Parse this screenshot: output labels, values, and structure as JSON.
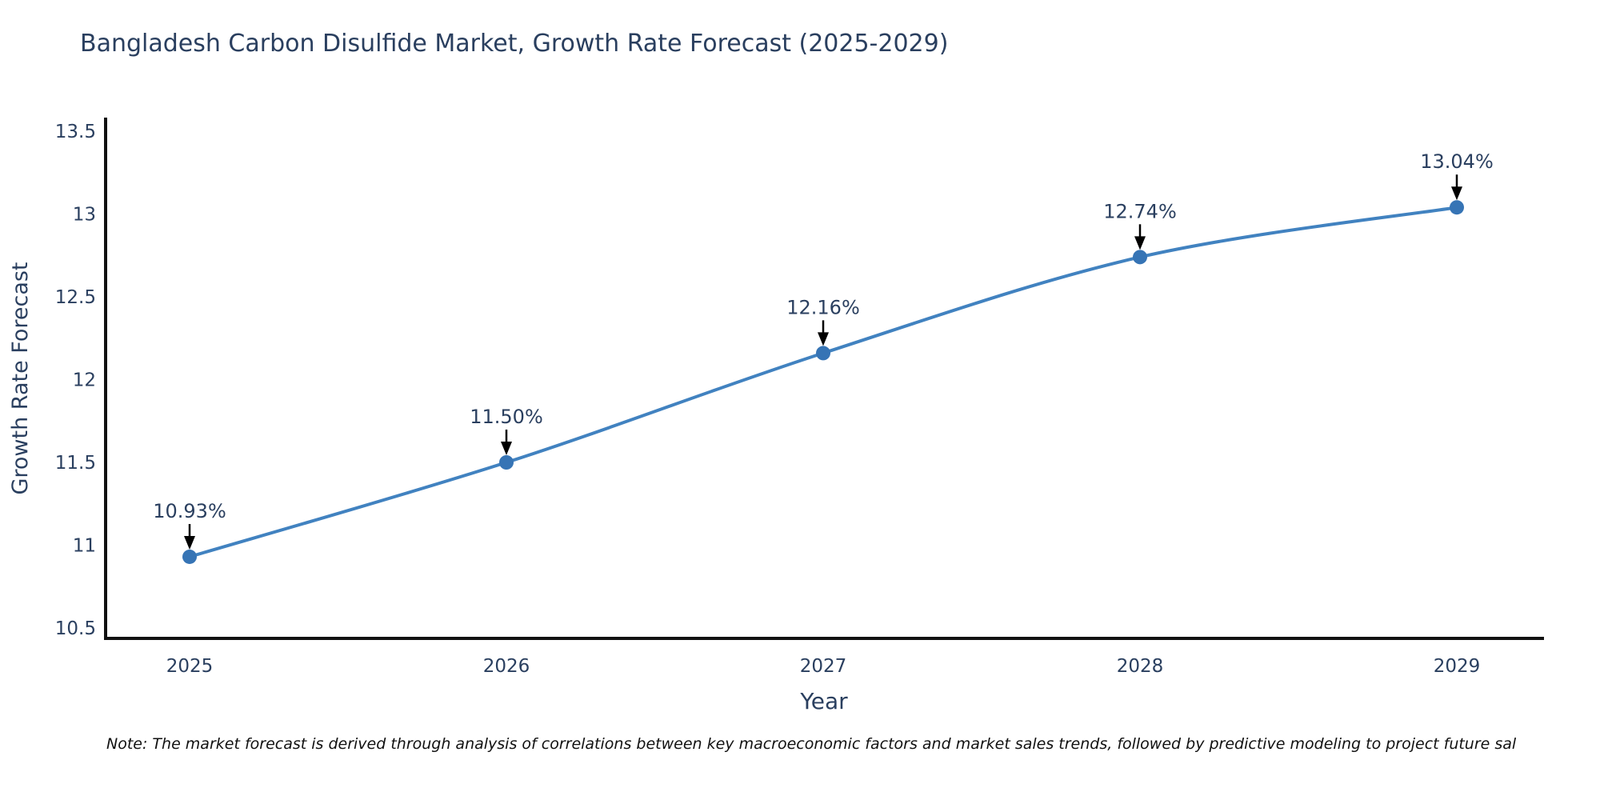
{
  "note": {
    "text": "Note: The market forecast is derived through analysis of correlations between key macroeconomic factors and market sales trends, followed by predictive modeling to project future sal"
  },
  "chart_data": {
    "type": "line",
    "title": "Bangladesh Carbon Disulfide Market, Growth Rate Forecast (2025-2029)",
    "x": [
      2025,
      2026,
      2027,
      2028,
      2029
    ],
    "values": [
      10.93,
      11.5,
      12.16,
      12.74,
      13.04
    ],
    "point_labels": [
      "10.93%",
      "11.50%",
      "12.16%",
      "12.74%",
      "13.04%"
    ],
    "xlabel": "Year",
    "ylabel": "Growth Rate Forecast",
    "yticks": [
      "13.5",
      "13",
      "12.5",
      "12",
      "11.5",
      "11",
      "10.5"
    ],
    "ytick_values": [
      13.5,
      13,
      12.5,
      12,
      11.5,
      11,
      10.5
    ],
    "ylim": [
      10.42,
      13.58
    ],
    "xlim": [
      2024.73,
      2029.28
    ],
    "grid": false,
    "legend": false,
    "line_shape": "spline",
    "colors": {
      "line": "#4182c0",
      "marker": "#3674b5",
      "axis": "#111111",
      "text": "#2a3f5f",
      "annotation_text": "#2a3f5f",
      "annotation_arrow": "#000000",
      "note_text": "#111111"
    }
  }
}
